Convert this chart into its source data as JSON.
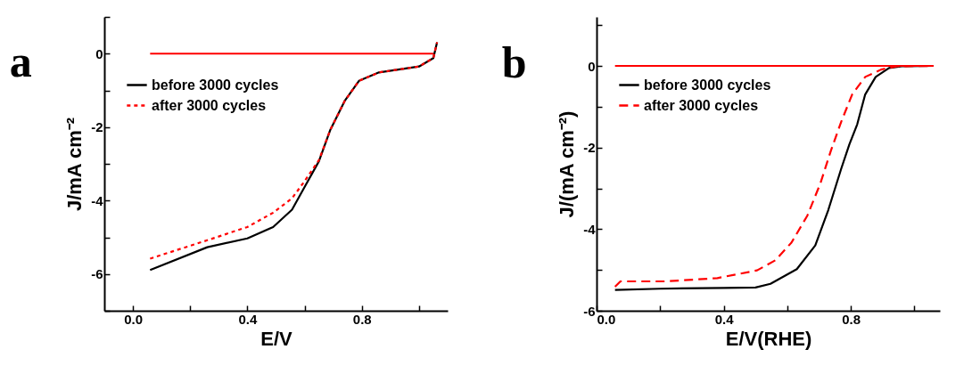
{
  "chart_data": [
    {
      "type": "line",
      "title": "a",
      "xlabel": "E/V",
      "ylabel": "J/mA cm⁻²",
      "xlim": [
        -0.1,
        1.1
      ],
      "ylim": [
        -7,
        1
      ],
      "xticks": [
        {
          "value": 0,
          "label": "0.0"
        },
        {
          "value": 0.2,
          "label": null
        },
        {
          "value": 0.4,
          "label": "0.4"
        },
        {
          "value": 0.6,
          "label": null
        },
        {
          "value": 0.8,
          "label": "0.8"
        },
        {
          "value": 1,
          "label": null
        }
      ],
      "yticks": [
        {
          "value": -7,
          "label": null
        },
        -6,
        {
          "value": -5,
          "label": null
        },
        -4,
        {
          "value": -3,
          "label": null
        },
        -2,
        {
          "value": -1,
          "label": null
        },
        0,
        {
          "value": 1,
          "label": null
        }
      ],
      "grid": false,
      "legend": "top left",
      "marker": "none",
      "series": [
        {
          "name": "before 3000 cycles",
          "color": "#000000",
          "line_style": "solid",
          "x": [
            0.06,
            0.26,
            0.4,
            0.49,
            0.556,
            0.6,
            0.65,
            0.69,
            0.74,
            0.79,
            0.86,
            1.0,
            1.05,
            1.063
          ],
          "values": [
            -5.89,
            -5.27,
            -5.03,
            -4.72,
            -4.25,
            -3.63,
            -2.93,
            -2.07,
            -1.29,
            -0.74,
            -0.51,
            -0.35,
            -0.12,
            0.31
          ]
        },
        {
          "name": "after 3000 cycles",
          "color": "#ff0000",
          "line_style": "dotted",
          "x": [
            0.06,
            0.26,
            0.4,
            0.49,
            0.556,
            0.6,
            0.65,
            0.69,
            0.74,
            0.79,
            0.86,
            1.0,
            1.05,
            1.063
          ],
          "values": [
            -5.58,
            -5.08,
            -4.72,
            -4.33,
            -3.94,
            -3.47,
            -2.9,
            -2.07,
            -1.29,
            -0.74,
            -0.51,
            -0.35,
            -0.12,
            0.31
          ]
        },
        {
          "color": "#ff0000",
          "line_style": "solid",
          "x": [
            0.06,
            1.05
          ],
          "values": [
            0,
            0
          ]
        }
      ]
    },
    {
      "type": "line",
      "title": "b",
      "xlabel": "E/V(RHE)",
      "ylabel": "J/(mA cm⁻²)",
      "xlim": [
        0,
        1.08
      ],
      "ylim": [
        -6,
        1.2
      ],
      "xticks": [
        {
          "value": 0,
          "label": "0.0"
        },
        {
          "value": 0.2,
          "label": null
        },
        {
          "value": 0.4,
          "label": "0.4"
        },
        {
          "value": 0.6,
          "label": null
        },
        {
          "value": 0.8,
          "label": "0.8"
        },
        {
          "value": 1,
          "label": null
        }
      ],
      "yticks": [
        -6,
        {
          "value": -5,
          "label": null
        },
        -4,
        {
          "value": -3,
          "label": null
        },
        -2,
        {
          "value": -1,
          "label": null
        },
        0,
        {
          "value": 1,
          "label": null
        }
      ],
      "grid": false,
      "legend": "top left",
      "marker": "none",
      "series": [
        {
          "name": "before 3000 cycles",
          "color": "#000000",
          "line_style": "solid",
          "x": [
            0.058,
            0.2,
            0.4,
            0.5,
            0.547,
            0.63,
            0.688,
            0.729,
            0.77,
            0.795,
            0.82,
            0.845,
            0.878,
            0.92,
            0.96,
            1.06
          ],
          "values": [
            -5.49,
            -5.46,
            -5.44,
            -5.43,
            -5.34,
            -4.98,
            -4.4,
            -3.53,
            -2.51,
            -1.93,
            -1.43,
            -0.7,
            -0.27,
            -0.05,
            -0.01,
            0
          ]
        },
        {
          "name": "after 3000 cycles",
          "color": "#ff0000",
          "line_style": "dashed",
          "x": [
            0.058,
            0.075,
            0.215,
            0.38,
            0.505,
            0.563,
            0.613,
            0.663,
            0.704,
            0.737,
            0.77,
            0.804,
            0.845,
            0.895,
            0.945,
            1.06
          ],
          "values": [
            -5.41,
            -5.28,
            -5.28,
            -5.2,
            -5.01,
            -4.76,
            -4.33,
            -3.67,
            -2.88,
            -2.08,
            -1.36,
            -0.7,
            -0.27,
            -0.09,
            -0.01,
            0
          ]
        },
        {
          "color": "#ff0000",
          "line_style": "solid",
          "x": [
            0.058,
            1.06
          ],
          "values": [
            0,
            0
          ]
        }
      ]
    }
  ]
}
